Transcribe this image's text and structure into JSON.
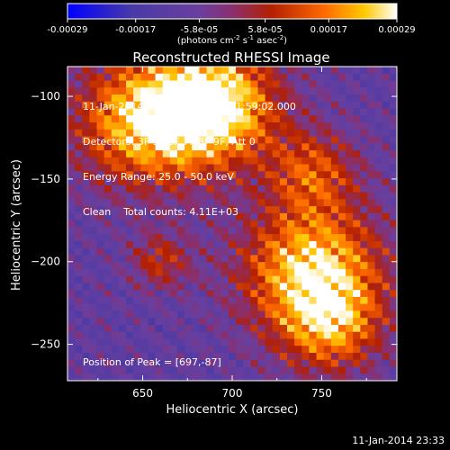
{
  "chart_data": {
    "type": "heatmap",
    "title": "Reconstructed RHESSI Image",
    "xlabel": "Heliocentric X (arcsec)",
    "ylabel": "Heliocentric Y (arcsec)",
    "xlim": [
      608,
      792
    ],
    "ylim": [
      -272,
      -82
    ],
    "xticks": [
      650,
      700,
      750
    ],
    "yticks": [
      -100,
      -150,
      -200,
      -250
    ],
    "colorbar": {
      "label": "(photons cm-2 s-1 asec-2)",
      "range": [
        -0.00029,
        0.00029
      ],
      "tick_labels": [
        "-0.00029",
        "-0.00017",
        "-5.8e-05",
        "5.8e-05",
        "0.00017",
        "0.00029"
      ],
      "tick_values": [
        -0.00029,
        -0.00017,
        -5.8e-05,
        5.8e-05,
        0.00017,
        0.00029
      ]
    },
    "colormap": [
      "#0000ff",
      "#4a3aa6",
      "#6a3f9e",
      "#8a2f6e",
      "#b32000",
      "#ff6a00",
      "#ffc800",
      "#ffffff"
    ],
    "emission_sources": [
      {
        "x": 690,
        "y": -105,
        "value": 0.00029,
        "spread": 25
      },
      {
        "x": 650,
        "y": -115,
        "value": 0.00022,
        "spread": 28
      },
      {
        "x": 745,
        "y": -205,
        "value": 0.00026,
        "spread": 28
      },
      {
        "x": 755,
        "y": -240,
        "value": 0.00012,
        "spread": 20
      },
      {
        "x": 745,
        "y": -145,
        "value": 0.0001,
        "spread": 18
      },
      {
        "x": 660,
        "y": -200,
        "value": 7e-05,
        "spread": 12
      }
    ],
    "background_level": -9e-05,
    "annotations": {
      "time_range": "11-Jan-2014 21:54:48.000 to 21:59:02.000",
      "detectors": "Detectors: 3F 5F 6F 7F 8F 9F, Att 0",
      "energy_range": "Energy Range: 25.0 - 50.0 keV",
      "method": "Clean    Total counts: 4.11E+03",
      "peak": "Position of Peak = [697,-87]"
    }
  },
  "timestamp": "11-Jan-2014 23:33"
}
